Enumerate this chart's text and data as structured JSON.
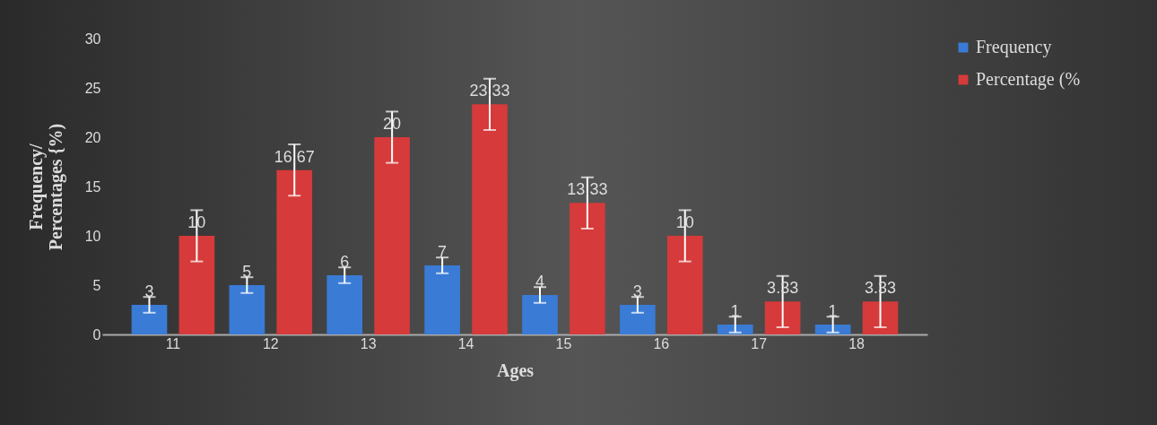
{
  "chart_data": {
    "type": "bar",
    "xlabel": "Ages",
    "ylabel": "Frequency/\nPercentages {%)",
    "categories": [
      "11",
      "12",
      "13",
      "14",
      "15",
      "16",
      "17",
      "18"
    ],
    "series": [
      {
        "name": "Frequency",
        "color": "#3a7bd5",
        "values": [
          3,
          5,
          6,
          7,
          4,
          3,
          1,
          1
        ],
        "errors": [
          0.8,
          0.8,
          0.8,
          0.8,
          0.8,
          0.8,
          0.8,
          0.8
        ]
      },
      {
        "name": "Percentage (%",
        "color": "#d63a3a",
        "values": [
          10,
          16.67,
          20,
          23.33,
          13.33,
          10,
          3.33,
          3.33
        ],
        "errors": [
          2.6,
          2.6,
          2.6,
          2.6,
          2.6,
          2.6,
          2.6,
          2.6
        ]
      }
    ],
    "ylim": [
      0,
      30
    ],
    "yticks": [
      0,
      5,
      10,
      15,
      20,
      25,
      30
    ],
    "grid": false,
    "legend": "right",
    "data_labels": true
  }
}
